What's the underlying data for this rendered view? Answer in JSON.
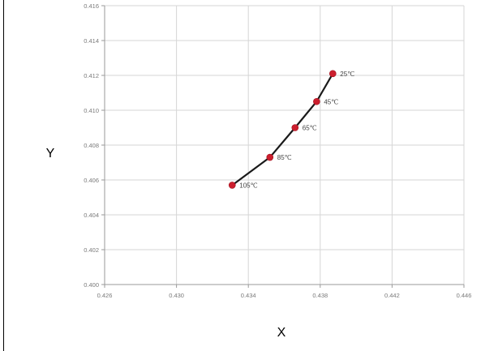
{
  "chart_data": {
    "type": "line",
    "title": "",
    "xlabel": "X",
    "ylabel": "Y",
    "xlim": [
      0.426,
      0.446
    ],
    "ylim": [
      0.4,
      0.416
    ],
    "x_ticks": [
      "0.426",
      "0.430",
      "0.434",
      "0.438",
      "0.442",
      "0.446"
    ],
    "y_ticks": [
      "0.400",
      "0.402",
      "0.404",
      "0.406",
      "0.408",
      "0.410",
      "0.412",
      "0.414",
      "0.416"
    ],
    "grid": true,
    "series": [
      {
        "x": [
          0.4387,
          0.4378,
          0.4366,
          0.4352,
          0.4331
        ],
        "y": [
          0.4121,
          0.4105,
          0.409,
          0.4073,
          0.4057
        ],
        "labels": [
          "25℃",
          "45℃",
          "65℃",
          "85℃",
          "105℃"
        ],
        "color": "#cc1f2e",
        "line_color": "#1a1a1a"
      }
    ]
  }
}
